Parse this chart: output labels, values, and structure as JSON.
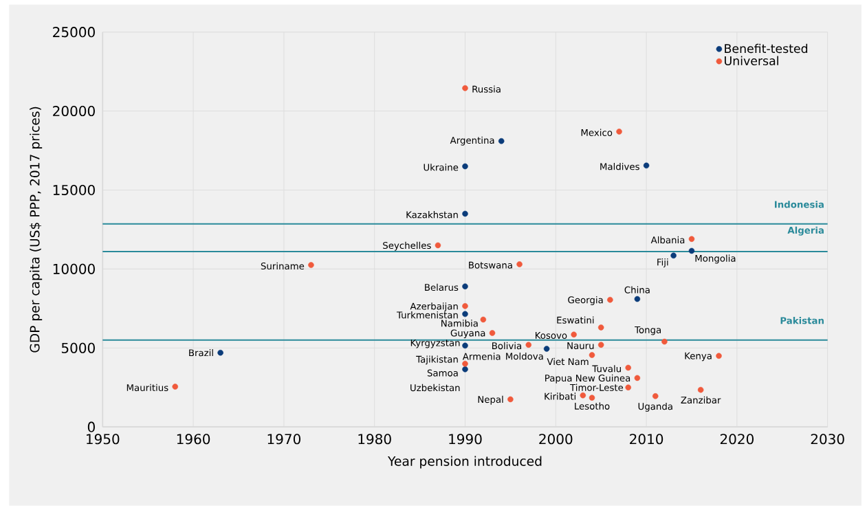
{
  "chart_data": {
    "type": "scatter",
    "xlabel": "Year pension introduced",
    "ylabel": "GDP per capita (US$ PPP, 2017 prices)",
    "xlim": [
      1950,
      2030
    ],
    "xticks": [
      1950,
      1960,
      1970,
      1980,
      1990,
      2000,
      2010,
      2020,
      2030
    ],
    "ylim": [
      0,
      25000
    ],
    "yticks": [
      0,
      5000,
      10000,
      15000,
      20000,
      25000
    ],
    "grid": true,
    "legend": "top right",
    "marker": "circle",
    "series": [
      {
        "name": "Benefit-tested",
        "color": "#0b3c7a",
        "x": [
          1963,
          1994,
          1990,
          1990,
          2010,
          1990,
          1990,
          1990,
          1990,
          2009,
          2013,
          2015,
          1999
        ],
        "values": [
          4700,
          18100,
          16500,
          13500,
          16550,
          8900,
          7150,
          5150,
          3650,
          8100,
          10850,
          11150,
          4950
        ]
      },
      {
        "name": "Universal",
        "color": "#f05a3c",
        "x": [
          1990,
          2007,
          1987,
          1973,
          1996,
          2015,
          1990,
          1992,
          1993,
          2006,
          2005,
          2002,
          1997,
          2005,
          2004,
          2012,
          2018,
          1990,
          2008,
          2009,
          2008,
          2016,
          2003,
          2004,
          2011,
          1995,
          1958
        ],
        "values": [
          21450,
          18700,
          11500,
          10250,
          10300,
          11900,
          7650,
          6800,
          5950,
          8050,
          6300,
          5850,
          5200,
          5200,
          4550,
          5400,
          4500,
          4000,
          3750,
          3100,
          2500,
          2350,
          2000,
          1850,
          1950,
          1750,
          2550
        ]
      }
    ],
    "ref_lines": [
      {
        "axis": "y",
        "value": 12850,
        "label": "Indonesia",
        "color": "#2a8a9a"
      },
      {
        "axis": "y",
        "value": 11100,
        "label": "Algeria",
        "color": "#2a8a9a"
      },
      {
        "axis": "y",
        "value": 5500,
        "label": "Pakistan",
        "color": "#2a8a9a"
      }
    ],
    "annotations": [
      {
        "text": "Brazil",
        "x": 1963,
        "y": 4700
      },
      {
        "text": "Argentina",
        "x": 1994,
        "y": 18100
      },
      {
        "text": "Ukraine",
        "x": 1990,
        "y": 16500
      },
      {
        "text": "Kazakhstan",
        "x": 1990,
        "y": 13500
      },
      {
        "text": "Maldives",
        "x": 2010,
        "y": 16550
      },
      {
        "text": "Belarus",
        "x": 1990,
        "y": 8900
      },
      {
        "text": "Turkmenistan",
        "x": 1990,
        "y": 7150
      },
      {
        "text": "Kyrgyzstan",
        "x": 1990,
        "y": 5150
      },
      {
        "text": "Samoa",
        "x": 1990,
        "y": 3650
      },
      {
        "text": "China",
        "x": 2009,
        "y": 8100
      },
      {
        "text": "Fiji",
        "x": 2013,
        "y": 10850
      },
      {
        "text": "Mongolia",
        "x": 2015,
        "y": 11150
      },
      {
        "text": "Moldova",
        "x": 1999,
        "y": 4950
      },
      {
        "text": "Uzbekistan",
        "x": 1990,
        "y": 3650
      },
      {
        "text": "Russia",
        "x": 1990,
        "y": 21450
      },
      {
        "text": "Mexico",
        "x": 2007,
        "y": 18700
      },
      {
        "text": "Seychelles",
        "x": 1987,
        "y": 11500
      },
      {
        "text": "Suriname",
        "x": 1973,
        "y": 10250
      },
      {
        "text": "Botswana",
        "x": 1996,
        "y": 10300
      },
      {
        "text": "Albania",
        "x": 2015,
        "y": 11900
      },
      {
        "text": "Azerbaijan",
        "x": 1990,
        "y": 7650
      },
      {
        "text": "Namibia",
        "x": 1992,
        "y": 6800
      },
      {
        "text": "Guyana",
        "x": 1993,
        "y": 5950
      },
      {
        "text": "Georgia",
        "x": 2006,
        "y": 8050
      },
      {
        "text": "Eswatini",
        "x": 2005,
        "y": 6300
      },
      {
        "text": "Kosovo",
        "x": 2002,
        "y": 5850
      },
      {
        "text": "Bolivia",
        "x": 1997,
        "y": 5200
      },
      {
        "text": "Nauru",
        "x": 2005,
        "y": 5200
      },
      {
        "text": "Viet Nam",
        "x": 2004,
        "y": 4550
      },
      {
        "text": "Tonga",
        "x": 2012,
        "y": 5400
      },
      {
        "text": "Kenya",
        "x": 2018,
        "y": 4500
      },
      {
        "text": "Armenia",
        "x": 1990,
        "y": 4000
      },
      {
        "text": "Tajikistan",
        "x": 1990,
        "y": 4000
      },
      {
        "text": "Tuvalu",
        "x": 2008,
        "y": 3750
      },
      {
        "text": "Papua New Guinea",
        "x": 2009,
        "y": 3100
      },
      {
        "text": "Timor-Leste",
        "x": 2008,
        "y": 2500
      },
      {
        "text": "Zanzibar",
        "x": 2016,
        "y": 2350
      },
      {
        "text": "Kiribati",
        "x": 2003,
        "y": 2000
      },
      {
        "text": "Lesotho",
        "x": 2004,
        "y": 1850
      },
      {
        "text": "Uganda",
        "x": 2011,
        "y": 1950
      },
      {
        "text": "Nepal",
        "x": 1995,
        "y": 1750
      },
      {
        "text": "Mauritius",
        "x": 1958,
        "y": 2550
      }
    ]
  }
}
